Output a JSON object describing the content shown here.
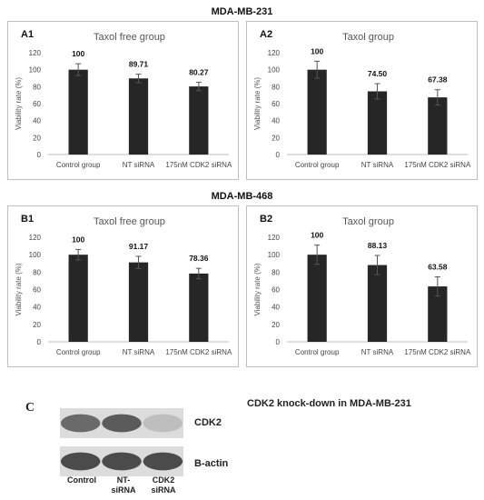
{
  "sections": {
    "top_title": "MDA-MB-231",
    "mid_title": "MDA-MB-468"
  },
  "chart_data": [
    {
      "panel_label": "A1",
      "type": "bar",
      "title": "Taxol free group",
      "ylabel": "Viability rate (%)",
      "categories": [
        "Control group",
        "NT siRNA",
        "175nM CDK2 siRNA"
      ],
      "values": [
        100,
        89.71,
        80.27
      ],
      "value_labels": [
        "100",
        "89.71",
        "80.27"
      ],
      "errors": [
        7,
        5,
        5
      ],
      "ylim": [
        0,
        120
      ],
      "yticks": [
        0,
        20,
        40,
        60,
        80,
        100,
        120
      ],
      "bar_color": "#262626",
      "grid": false
    },
    {
      "panel_label": "A2",
      "type": "bar",
      "title": "Taxol group",
      "ylabel": "Viability rate (%)",
      "categories": [
        "Control group",
        "NT siRNA",
        "175nM CDK2 siRNA"
      ],
      "values": [
        100,
        74.5,
        67.38
      ],
      "value_labels": [
        "100",
        "74.50",
        "67.38"
      ],
      "errors": [
        10,
        9,
        9
      ],
      "ylim": [
        0,
        120
      ],
      "yticks": [
        0,
        20,
        40,
        60,
        80,
        100,
        120
      ],
      "bar_color": "#262626",
      "grid": false
    },
    {
      "panel_label": "B1",
      "type": "bar",
      "title": "Taxol free group",
      "ylabel": "Viability rate (%)",
      "categories": [
        "Control group",
        "NT siRNA",
        "175nM CDK2 siRNA"
      ],
      "values": [
        100,
        91.17,
        78.36
      ],
      "value_labels": [
        "100",
        "91.17",
        "78.36"
      ],
      "errors": [
        6,
        7,
        6
      ],
      "ylim": [
        0,
        120
      ],
      "yticks": [
        0,
        20,
        40,
        60,
        80,
        100,
        120
      ],
      "bar_color": "#262626",
      "grid": false
    },
    {
      "panel_label": "B2",
      "type": "bar",
      "title": "Taxol group",
      "ylabel": "Viability rate (%)",
      "categories": [
        "Control group",
        "NT siRNA",
        "175nM CDK2 siRNA"
      ],
      "values": [
        100,
        88.13,
        63.58
      ],
      "value_labels": [
        "100",
        "88.13",
        "63.58"
      ],
      "errors": [
        11,
        11,
        11
      ],
      "ylim": [
        0,
        120
      ],
      "yticks": [
        0,
        20,
        40,
        60,
        80,
        100,
        120
      ],
      "bar_color": "#262626",
      "grid": false
    }
  ],
  "western_blot": {
    "panel_label": "C",
    "title": "CDK2 knock-down in MDA-MB-231",
    "bands": [
      {
        "label": "CDK2",
        "intensities": [
          0.75,
          0.85,
          0.2
        ]
      },
      {
        "label": "B-actin",
        "intensities": [
          0.95,
          0.95,
          0.95
        ]
      }
    ],
    "lanes": [
      "Control",
      "NT-\nsiRNA",
      "CDK2\nsiRNA"
    ]
  }
}
